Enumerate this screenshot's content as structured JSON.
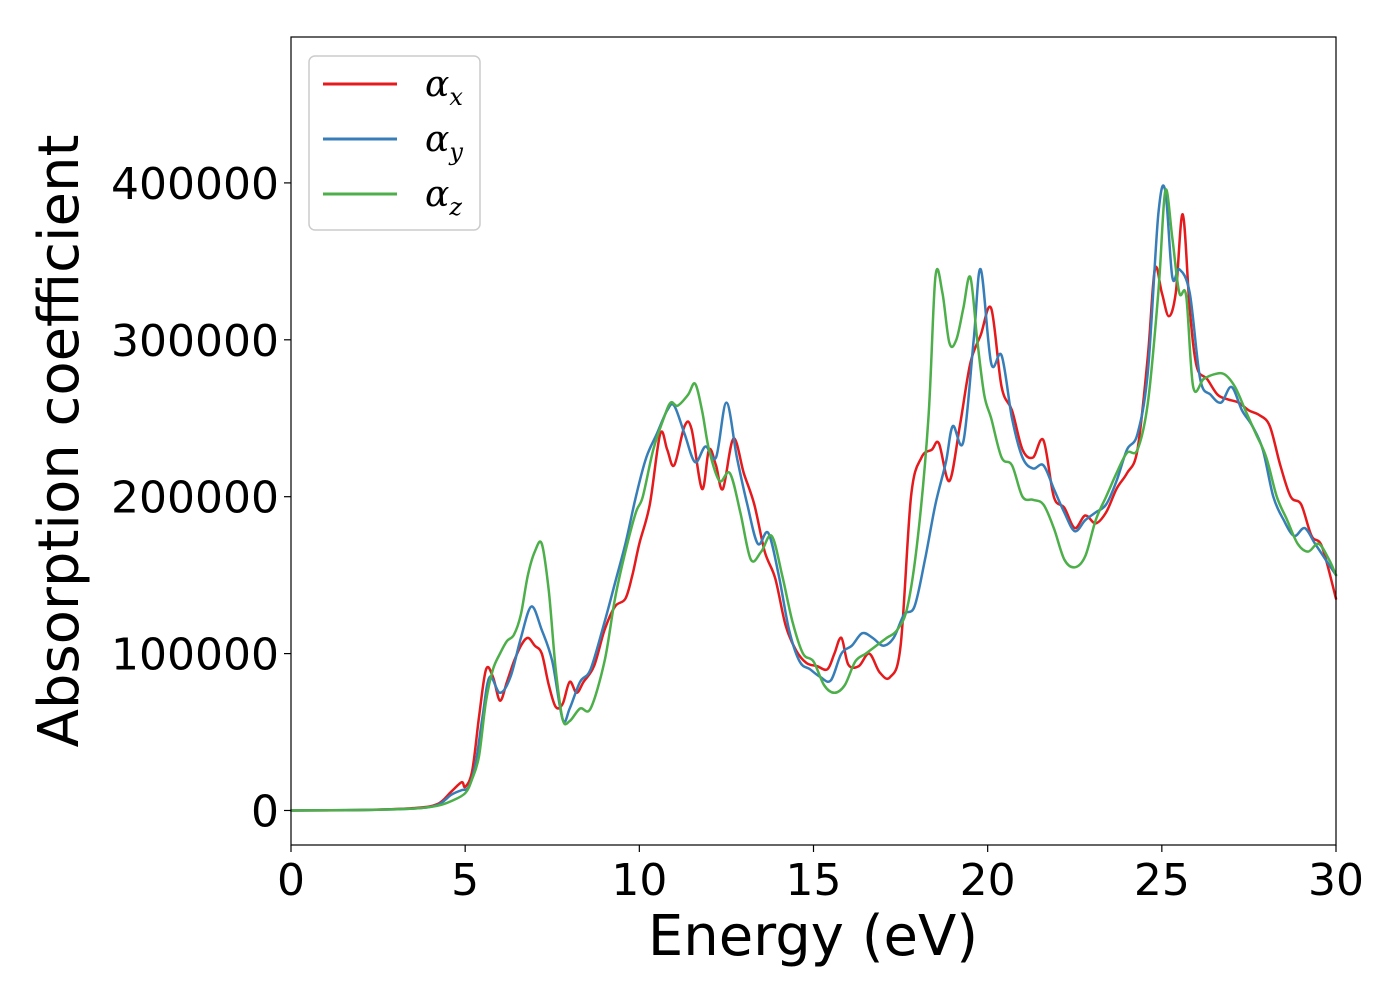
{
  "chart_data": {
    "type": "line",
    "xlabel": "Energy (eV)",
    "ylabel": "Absorption coefficient",
    "xlim": [
      0,
      30
    ],
    "ylim": [
      -22000,
      493000
    ],
    "xticks": [
      0,
      5,
      10,
      15,
      20,
      25,
      30
    ],
    "xtick_labels": [
      "0",
      "5",
      "10",
      "15",
      "20",
      "25",
      "30"
    ],
    "yticks": [
      0,
      100000,
      200000,
      300000,
      400000
    ],
    "ytick_labels": [
      "0",
      "100000",
      "200000",
      "300000",
      "400000"
    ],
    "grid": false,
    "legend": {
      "position": "top-left",
      "entries": [
        {
          "symbol": "α",
          "sub": "x"
        },
        {
          "symbol": "α",
          "sub": "y"
        },
        {
          "symbol": "α",
          "sub": "z"
        }
      ]
    },
    "colors": [
      "#e41a1c",
      "#377eb8",
      "#4daf4a"
    ],
    "series": [
      {
        "legend_index": 0,
        "x": [
          0,
          2,
          3.5,
          4.2,
          4.6,
          4.9,
          5.0,
          5.2,
          5.4,
          5.6,
          5.8,
          6.0,
          6.2,
          6.4,
          6.6,
          6.8,
          7.0,
          7.2,
          7.4,
          7.6,
          7.8,
          8.0,
          8.2,
          8.4,
          8.7,
          9.0,
          9.3,
          9.6,
          9.8,
          10.0,
          10.3,
          10.6,
          10.8,
          11.0,
          11.3,
          11.5,
          11.8,
          12.0,
          12.2,
          12.4,
          12.7,
          13.0,
          13.3,
          13.6,
          13.9,
          14.2,
          14.5,
          14.8,
          15.1,
          15.4,
          15.6,
          15.8,
          16.0,
          16.3,
          16.6,
          16.9,
          17.2,
          17.5,
          17.8,
          18.1,
          18.4,
          18.6,
          18.9,
          19.2,
          19.5,
          19.8,
          20.1,
          20.4,
          20.7,
          21.0,
          21.3,
          21.6,
          21.9,
          22.2,
          22.5,
          22.8,
          23.1,
          23.4,
          23.7,
          24.0,
          24.3,
          24.6,
          24.8,
          25.0,
          25.2,
          25.4,
          25.6,
          25.8,
          26.0,
          26.3,
          26.6,
          26.9,
          27.2,
          27.5,
          27.8,
          28.1,
          28.4,
          28.7,
          29.0,
          29.3,
          29.6,
          30.0
        ],
        "y": [
          0,
          300,
          1500,
          4000,
          12000,
          18000,
          15000,
          25000,
          60000,
          90000,
          85000,
          70000,
          82000,
          95000,
          105000,
          110000,
          105000,
          100000,
          80000,
          66000,
          68000,
          82000,
          75000,
          82000,
          92000,
          115000,
          130000,
          135000,
          150000,
          170000,
          195000,
          240000,
          230000,
          220000,
          245000,
          243000,
          205000,
          230000,
          220000,
          205000,
          237000,
          215000,
          195000,
          165000,
          148000,
          118000,
          102000,
          94000,
          92000,
          90000,
          100000,
          110000,
          93000,
          92000,
          100000,
          88000,
          85000,
          105000,
          200000,
          225000,
          230000,
          234000,
          210000,
          245000,
          285000,
          303000,
          320000,
          270000,
          255000,
          230000,
          225000,
          236000,
          200000,
          193000,
          180000,
          188000,
          183000,
          190000,
          205000,
          215000,
          230000,
          290000,
          345000,
          330000,
          315000,
          330000,
          380000,
          320000,
          283000,
          275000,
          265000,
          262000,
          260000,
          255000,
          252000,
          245000,
          220000,
          200000,
          195000,
          175000,
          168000,
          135000
        ]
      },
      {
        "legend_index": 1,
        "x": [
          0,
          2,
          3.5,
          4.2,
          4.6,
          4.9,
          5.1,
          5.3,
          5.5,
          5.7,
          6.0,
          6.3,
          6.6,
          6.9,
          7.2,
          7.5,
          7.8,
          8.0,
          8.3,
          8.6,
          9.0,
          9.3,
          9.6,
          9.9,
          10.2,
          10.5,
          10.8,
          11.0,
          11.3,
          11.6,
          11.9,
          12.2,
          12.5,
          12.8,
          13.1,
          13.4,
          13.7,
          14.0,
          14.3,
          14.6,
          14.9,
          15.2,
          15.5,
          15.8,
          16.1,
          16.4,
          16.7,
          17.0,
          17.3,
          17.6,
          17.9,
          18.2,
          18.5,
          18.8,
          19.0,
          19.3,
          19.6,
          19.8,
          20.1,
          20.4,
          20.7,
          21.0,
          21.3,
          21.6,
          21.9,
          22.2,
          22.5,
          22.8,
          23.1,
          23.4,
          23.7,
          24.0,
          24.3,
          24.6,
          24.9,
          25.1,
          25.3,
          25.5,
          25.8,
          26.1,
          26.4,
          26.7,
          27.0,
          27.3,
          27.6,
          27.9,
          28.2,
          28.5,
          28.8,
          29.1,
          29.4,
          29.7,
          30.0
        ],
        "y": [
          0,
          300,
          1200,
          3500,
          10000,
          13000,
          15000,
          30000,
          60000,
          85000,
          75000,
          85000,
          110000,
          130000,
          115000,
          95000,
          58000,
          65000,
          82000,
          90000,
          120000,
          145000,
          170000,
          200000,
          225000,
          240000,
          255000,
          258000,
          240000,
          222000,
          232000,
          225000,
          260000,
          225000,
          195000,
          170000,
          177000,
          150000,
          115000,
          95000,
          90000,
          85000,
          83000,
          100000,
          105000,
          113000,
          110000,
          105000,
          110000,
          125000,
          130000,
          160000,
          195000,
          222000,
          245000,
          235000,
          300000,
          345000,
          285000,
          290000,
          250000,
          225000,
          218000,
          220000,
          205000,
          190000,
          178000,
          185000,
          190000,
          195000,
          210000,
          230000,
          240000,
          280000,
          380000,
          395000,
          340000,
          345000,
          330000,
          275000,
          265000,
          260000,
          270000,
          255000,
          245000,
          230000,
          200000,
          185000,
          175000,
          180000,
          170000,
          160000,
          150000
        ]
      },
      {
        "legend_index": 2,
        "x": [
          0,
          2,
          3.5,
          4.2,
          4.6,
          5.0,
          5.2,
          5.4,
          5.6,
          5.8,
          6.0,
          6.2,
          6.4,
          6.6,
          6.8,
          7.0,
          7.2,
          7.4,
          7.6,
          7.8,
          8.0,
          8.3,
          8.6,
          9.0,
          9.3,
          9.6,
          9.9,
          10.1,
          10.4,
          10.7,
          10.9,
          11.1,
          11.4,
          11.6,
          11.8,
          12.0,
          12.3,
          12.6,
          12.9,
          13.2,
          13.5,
          13.8,
          14.1,
          14.4,
          14.7,
          15.0,
          15.3,
          15.6,
          15.9,
          16.2,
          16.5,
          16.8,
          17.1,
          17.4,
          17.7,
          18.0,
          18.3,
          18.5,
          18.7,
          18.9,
          19.1,
          19.3,
          19.5,
          19.7,
          19.9,
          20.1,
          20.4,
          20.7,
          21.0,
          21.3,
          21.6,
          21.9,
          22.2,
          22.5,
          22.8,
          23.1,
          23.4,
          23.7,
          24.0,
          24.3,
          24.6,
          24.9,
          25.1,
          25.3,
          25.5,
          25.7,
          25.9,
          26.2,
          26.5,
          26.8,
          27.1,
          27.4,
          27.7,
          28.0,
          28.3,
          28.6,
          28.9,
          29.2,
          29.5,
          29.8,
          30.0
        ],
        "y": [
          0,
          300,
          1200,
          3000,
          6000,
          11000,
          20000,
          35000,
          70000,
          90000,
          100000,
          108000,
          112000,
          125000,
          150000,
          165000,
          170000,
          140000,
          90000,
          58000,
          57000,
          65000,
          65000,
          95000,
          135000,
          165000,
          190000,
          200000,
          230000,
          250000,
          260000,
          258000,
          265000,
          272000,
          255000,
          230000,
          210000,
          215000,
          190000,
          160000,
          165000,
          175000,
          150000,
          120000,
          100000,
          95000,
          80000,
          75000,
          80000,
          95000,
          100000,
          105000,
          110000,
          115000,
          130000,
          175000,
          250000,
          340000,
          330000,
          298000,
          300000,
          320000,
          340000,
          300000,
          265000,
          250000,
          225000,
          220000,
          200000,
          198000,
          195000,
          180000,
          160000,
          155000,
          162000,
          185000,
          200000,
          215000,
          228000,
          230000,
          260000,
          330000,
          395000,
          365000,
          330000,
          328000,
          270000,
          275000,
          278000,
          278000,
          270000,
          255000,
          240000,
          225000,
          200000,
          185000,
          170000,
          165000,
          170000,
          160000,
          150000
        ]
      }
    ]
  }
}
